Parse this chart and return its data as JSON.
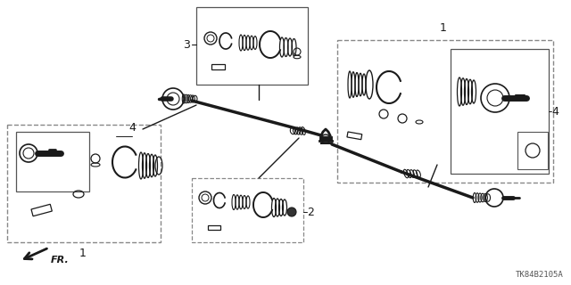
{
  "bg_color": "#ffffff",
  "line_color": "#1a1a1a",
  "fig_width": 6.4,
  "fig_height": 3.2,
  "dpi": 100,
  "part_number_text": "TK84B2105A",
  "fr_text": "FR."
}
